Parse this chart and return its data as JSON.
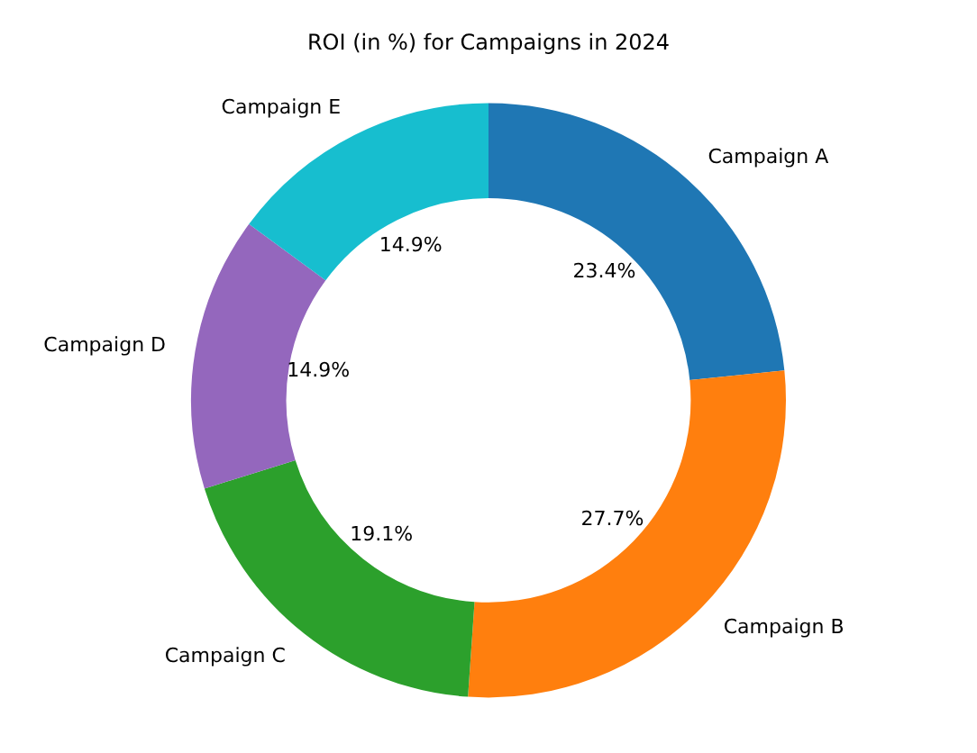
{
  "chart_data": {
    "type": "donut",
    "title": "ROI (in %) for Campaigns in 2024",
    "categories": [
      "Campaign A",
      "Campaign B",
      "Campaign C",
      "Campaign D",
      "Campaign E"
    ],
    "values": [
      23.4,
      27.7,
      19.1,
      14.9,
      14.9
    ],
    "colors": [
      "#1f77b4",
      "#ff7f0e",
      "#2ca02c",
      "#9467bd",
      "#17becf"
    ],
    "value_labels": [
      "23.4%",
      "27.7%",
      "19.1%",
      "14.9%",
      "14.9%"
    ],
    "legend": false
  }
}
